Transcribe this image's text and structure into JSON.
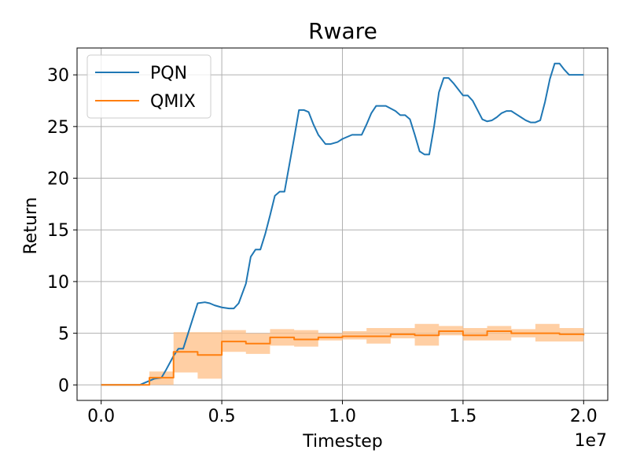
{
  "chart_data": {
    "type": "line",
    "title": "Rware",
    "xlabel": "Timestep",
    "ylabel": "Return",
    "x_offset_label": "1e7",
    "xlim": [
      -0.1,
      2.1
    ],
    "ylim": [
      -1.5,
      32.6
    ],
    "xticks": [
      0.0,
      0.5,
      1.0,
      1.5,
      2.0
    ],
    "xtick_labels": [
      "0.0",
      "0.5",
      "1.0",
      "1.5",
      "2.0"
    ],
    "yticks": [
      0,
      5,
      10,
      15,
      20,
      25,
      30
    ],
    "ytick_labels": [
      "0",
      "5",
      "10",
      "15",
      "20",
      "25",
      "30"
    ],
    "grid": true,
    "legend_position": "top-left",
    "series": [
      {
        "name": "PQN",
        "color": "#1f77b4",
        "x": [
          0.0,
          0.16,
          0.17,
          0.2,
          0.22,
          0.25,
          0.27,
          0.3,
          0.32,
          0.34,
          0.37,
          0.4,
          0.43,
          0.45,
          0.47,
          0.5,
          0.53,
          0.55,
          0.57,
          0.6,
          0.62,
          0.64,
          0.66,
          0.68,
          0.7,
          0.72,
          0.74,
          0.76,
          0.8,
          0.82,
          0.84,
          0.86,
          0.88,
          0.9,
          0.93,
          0.95,
          0.98,
          1.0,
          1.04,
          1.06,
          1.08,
          1.1,
          1.12,
          1.14,
          1.18,
          1.22,
          1.24,
          1.26,
          1.28,
          1.3,
          1.32,
          1.34,
          1.36,
          1.38,
          1.4,
          1.42,
          1.44,
          1.46,
          1.48,
          1.5,
          1.52,
          1.54,
          1.56,
          1.58,
          1.6,
          1.62,
          1.64,
          1.66,
          1.68,
          1.7,
          1.72,
          1.74,
          1.76,
          1.78,
          1.8,
          1.82,
          1.84,
          1.86,
          1.88,
          1.9,
          1.92,
          1.94,
          1.96,
          1.98,
          2.0
        ],
        "y": [
          0.0,
          0.0,
          0.1,
          0.4,
          0.6,
          0.7,
          1.5,
          2.8,
          3.5,
          3.5,
          5.7,
          7.9,
          8.0,
          7.9,
          7.7,
          7.5,
          7.4,
          7.4,
          7.9,
          9.8,
          12.4,
          13.1,
          13.1,
          14.6,
          16.4,
          18.3,
          18.7,
          18.7,
          23.9,
          26.6,
          26.6,
          26.4,
          25.2,
          24.2,
          23.3,
          23.3,
          23.5,
          23.8,
          24.2,
          24.2,
          24.2,
          25.2,
          26.3,
          27.0,
          27.0,
          26.5,
          26.1,
          26.1,
          25.7,
          24.2,
          22.6,
          22.3,
          22.3,
          25.0,
          28.3,
          29.7,
          29.7,
          29.2,
          28.6,
          28.0,
          28.0,
          27.5,
          26.6,
          25.7,
          25.5,
          25.6,
          25.9,
          26.3,
          26.5,
          26.5,
          26.2,
          25.9,
          25.6,
          25.4,
          25.4,
          25.6,
          27.4,
          29.6,
          31.1,
          31.1,
          30.5,
          30.0,
          30.0,
          30.0,
          30.0
        ]
      },
      {
        "name": "QMIX",
        "color": "#ff7f0e",
        "band_color": "#ffbf86",
        "band": "shaded min-max range",
        "x": [
          0.0,
          0.2,
          0.3,
          0.4,
          0.5,
          0.6,
          0.7,
          0.8,
          0.9,
          1.0,
          1.1,
          1.2,
          1.3,
          1.4,
          1.5,
          1.6,
          1.7,
          1.8,
          1.9,
          2.0
        ],
        "y": [
          0.0,
          0.7,
          3.2,
          2.9,
          4.2,
          4.0,
          4.6,
          4.4,
          4.6,
          4.7,
          4.7,
          4.9,
          4.8,
          5.2,
          4.8,
          5.2,
          5.0,
          5.0,
          4.9,
          4.8
        ],
        "low": [
          0.0,
          0.0,
          1.2,
          0.6,
          3.2,
          3.0,
          3.8,
          3.7,
          4.3,
          4.4,
          4.0,
          4.5,
          3.8,
          4.8,
          4.3,
          4.3,
          4.6,
          4.2,
          4.2,
          4.2
        ],
        "high": [
          0.0,
          1.3,
          5.1,
          5.1,
          5.3,
          5.0,
          5.4,
          5.3,
          5.0,
          5.2,
          5.5,
          5.5,
          5.9,
          5.7,
          5.5,
          5.7,
          5.4,
          5.9,
          5.5,
          5.5
        ]
      }
    ]
  }
}
